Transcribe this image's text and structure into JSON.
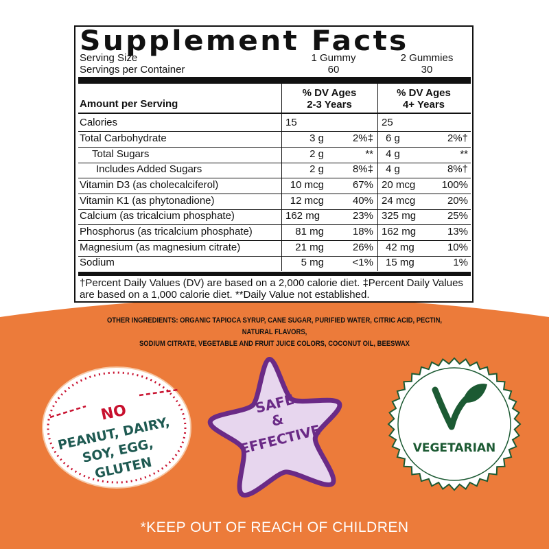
{
  "facts": {
    "title": "Supplement Facts",
    "serving_size_label": "Serving Size",
    "servings_per_container_label": "Servings per Container",
    "serving_size_col1": "1 Gummy",
    "serving_size_col2": "2 Gummies",
    "servings_col1": "60",
    "servings_col2": "30",
    "amount_per_serving": "Amount per Serving",
    "col1_header_line1": "% DV Ages",
    "col1_header_line2": "2-3 Years",
    "col2_header_line1": "% DV Ages",
    "col2_header_line2": "4+ Years",
    "rows": [
      {
        "name": "Calories",
        "a1": "15",
        "p1": "",
        "a2": "25",
        "p2": ""
      },
      {
        "name": "Total Carbohydrate",
        "a1": "3 g",
        "p1": "2%‡",
        "a2": "6 g",
        "p2": "2%†"
      },
      {
        "name": "Total Sugars",
        "a1": "2 g",
        "p1": "**",
        "a2": "4 g",
        "p2": "**"
      },
      {
        "name": "Includes Added Sugars",
        "a1": "2 g",
        "p1": "8%‡",
        "a2": "4 g",
        "p2": "8%†"
      },
      {
        "name": "Vitamin D3 (as cholecalciferol)",
        "a1": "10 mcg",
        "p1": "67%",
        "a2": "20 mcg",
        "p2": "100%"
      },
      {
        "name": "Vitamin K1 (as phytonadione)",
        "a1": "12 mcg",
        "p1": "40%",
        "a2": "24 mcg",
        "p2": "20%"
      },
      {
        "name": "Calcium (as tricalcium phosphate)",
        "a1": "162 mg",
        "p1": "23%",
        "a2": "325 mg",
        "p2": "25%"
      },
      {
        "name": "Phosphorus (as tricalcium phosphate)",
        "a1": "81 mg",
        "p1": "18%",
        "a2": "162 mg",
        "p2": "13%"
      },
      {
        "name": "Magnesium (as magnesium citrate)",
        "a1": "21 mg",
        "p1": "26%",
        "a2": "42 mg",
        "p2": "10%"
      },
      {
        "name": "Sodium",
        "a1": "5 mg",
        "p1": "<1%",
        "a2": "15 mg",
        "p2": "1%"
      }
    ],
    "footnote": "†Percent Daily Values (DV) are based on a 2,000 calorie diet. ‡Percent Daily Values are based on a 1,000 calorie diet. **Daily Value not established."
  },
  "other_ingredients_line1": "OTHER INGREDIENTS: ORGANIC TAPIOCA SYRUP, CANE SUGAR, PURIFIED WATER, CITRIC ACID, PECTIN, NATURAL FLAVORS,",
  "other_ingredients_line2": "SODIUM CITRATE, VEGETABLE AND FRUIT JUICE COLORS, COCONUT OIL, BEESWAX",
  "badges": {
    "allergen_line1": "NO",
    "allergen_line2": "PEANUT, DAIRY,",
    "allergen_line3": "SOY, EGG,",
    "allergen_line4": "GLUTEN",
    "safe_line1": "SAFE",
    "safe_line2": "&",
    "safe_line3": "EFFECTIVE",
    "vegetarian": "VEGETARIAN"
  },
  "warning": "*KEEP OUT OF REACH OF CHILDREN",
  "colors": {
    "orange": "#ec7b3a",
    "red": "#c8102e",
    "teal": "#1f5a52",
    "purple": "#6a2a86",
    "light_purple": "#e7d6ee",
    "green": "#1c5a33"
  }
}
